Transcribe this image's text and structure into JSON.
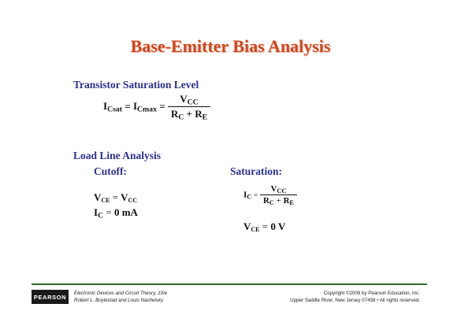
{
  "slide": {
    "title": "Base-Emitter Bias Analysis",
    "saturation_section": {
      "heading": "Transistor Saturation Level",
      "lhs1": "I",
      "lhs1_sub": "Csat",
      "eq1": "=",
      "lhs2": "I",
      "lhs2_sub": "Cmax",
      "eq2": "=",
      "num_main": "V",
      "num_sub": "CC",
      "den_r1": "R",
      "den_r1_sub": "C",
      "den_plus": "+",
      "den_r2": "R",
      "den_r2_sub": "E"
    },
    "load_line_section": {
      "heading": "Load Line Analysis",
      "cutoff": {
        "label": "Cutoff:",
        "vce_main": "V",
        "vce_sub": "CE",
        "vce_eq": "=",
        "vce_rhs_main": "V",
        "vce_rhs_sub": "CC",
        "ic_main": "I",
        "ic_sub": "C",
        "ic_eq": "=",
        "ic_rhs": "0 mA"
      },
      "saturation": {
        "label": "Saturation:",
        "ic_main": "I",
        "ic_sub": "C",
        "ic_eq": "=",
        "num_main": "V",
        "num_sub": "CC",
        "den_r1": "R",
        "den_r1_sub": "C",
        "den_plus": "+",
        "den_r2": "R",
        "den_r2_sub": "E",
        "vce_main": "V",
        "vce_sub": "CE",
        "vce_eq": "=",
        "vce_rhs": "0 V"
      }
    }
  },
  "footer": {
    "logo": "PEARSON",
    "left_line1": "Electronic Devices and Circuit Theory, 10/e",
    "left_line2": "Robert L. Boylestad and Louis Nashelsky",
    "right_line1": "Copyright ©2009 by Pearson Education, Inc.",
    "right_line2": "Upper Saddle River, New Jersey 07458 • All rights reserved."
  },
  "colors": {
    "title": "#d2461e",
    "headings": "#2b2f8f",
    "footer_rule": "#2f6b2f"
  }
}
